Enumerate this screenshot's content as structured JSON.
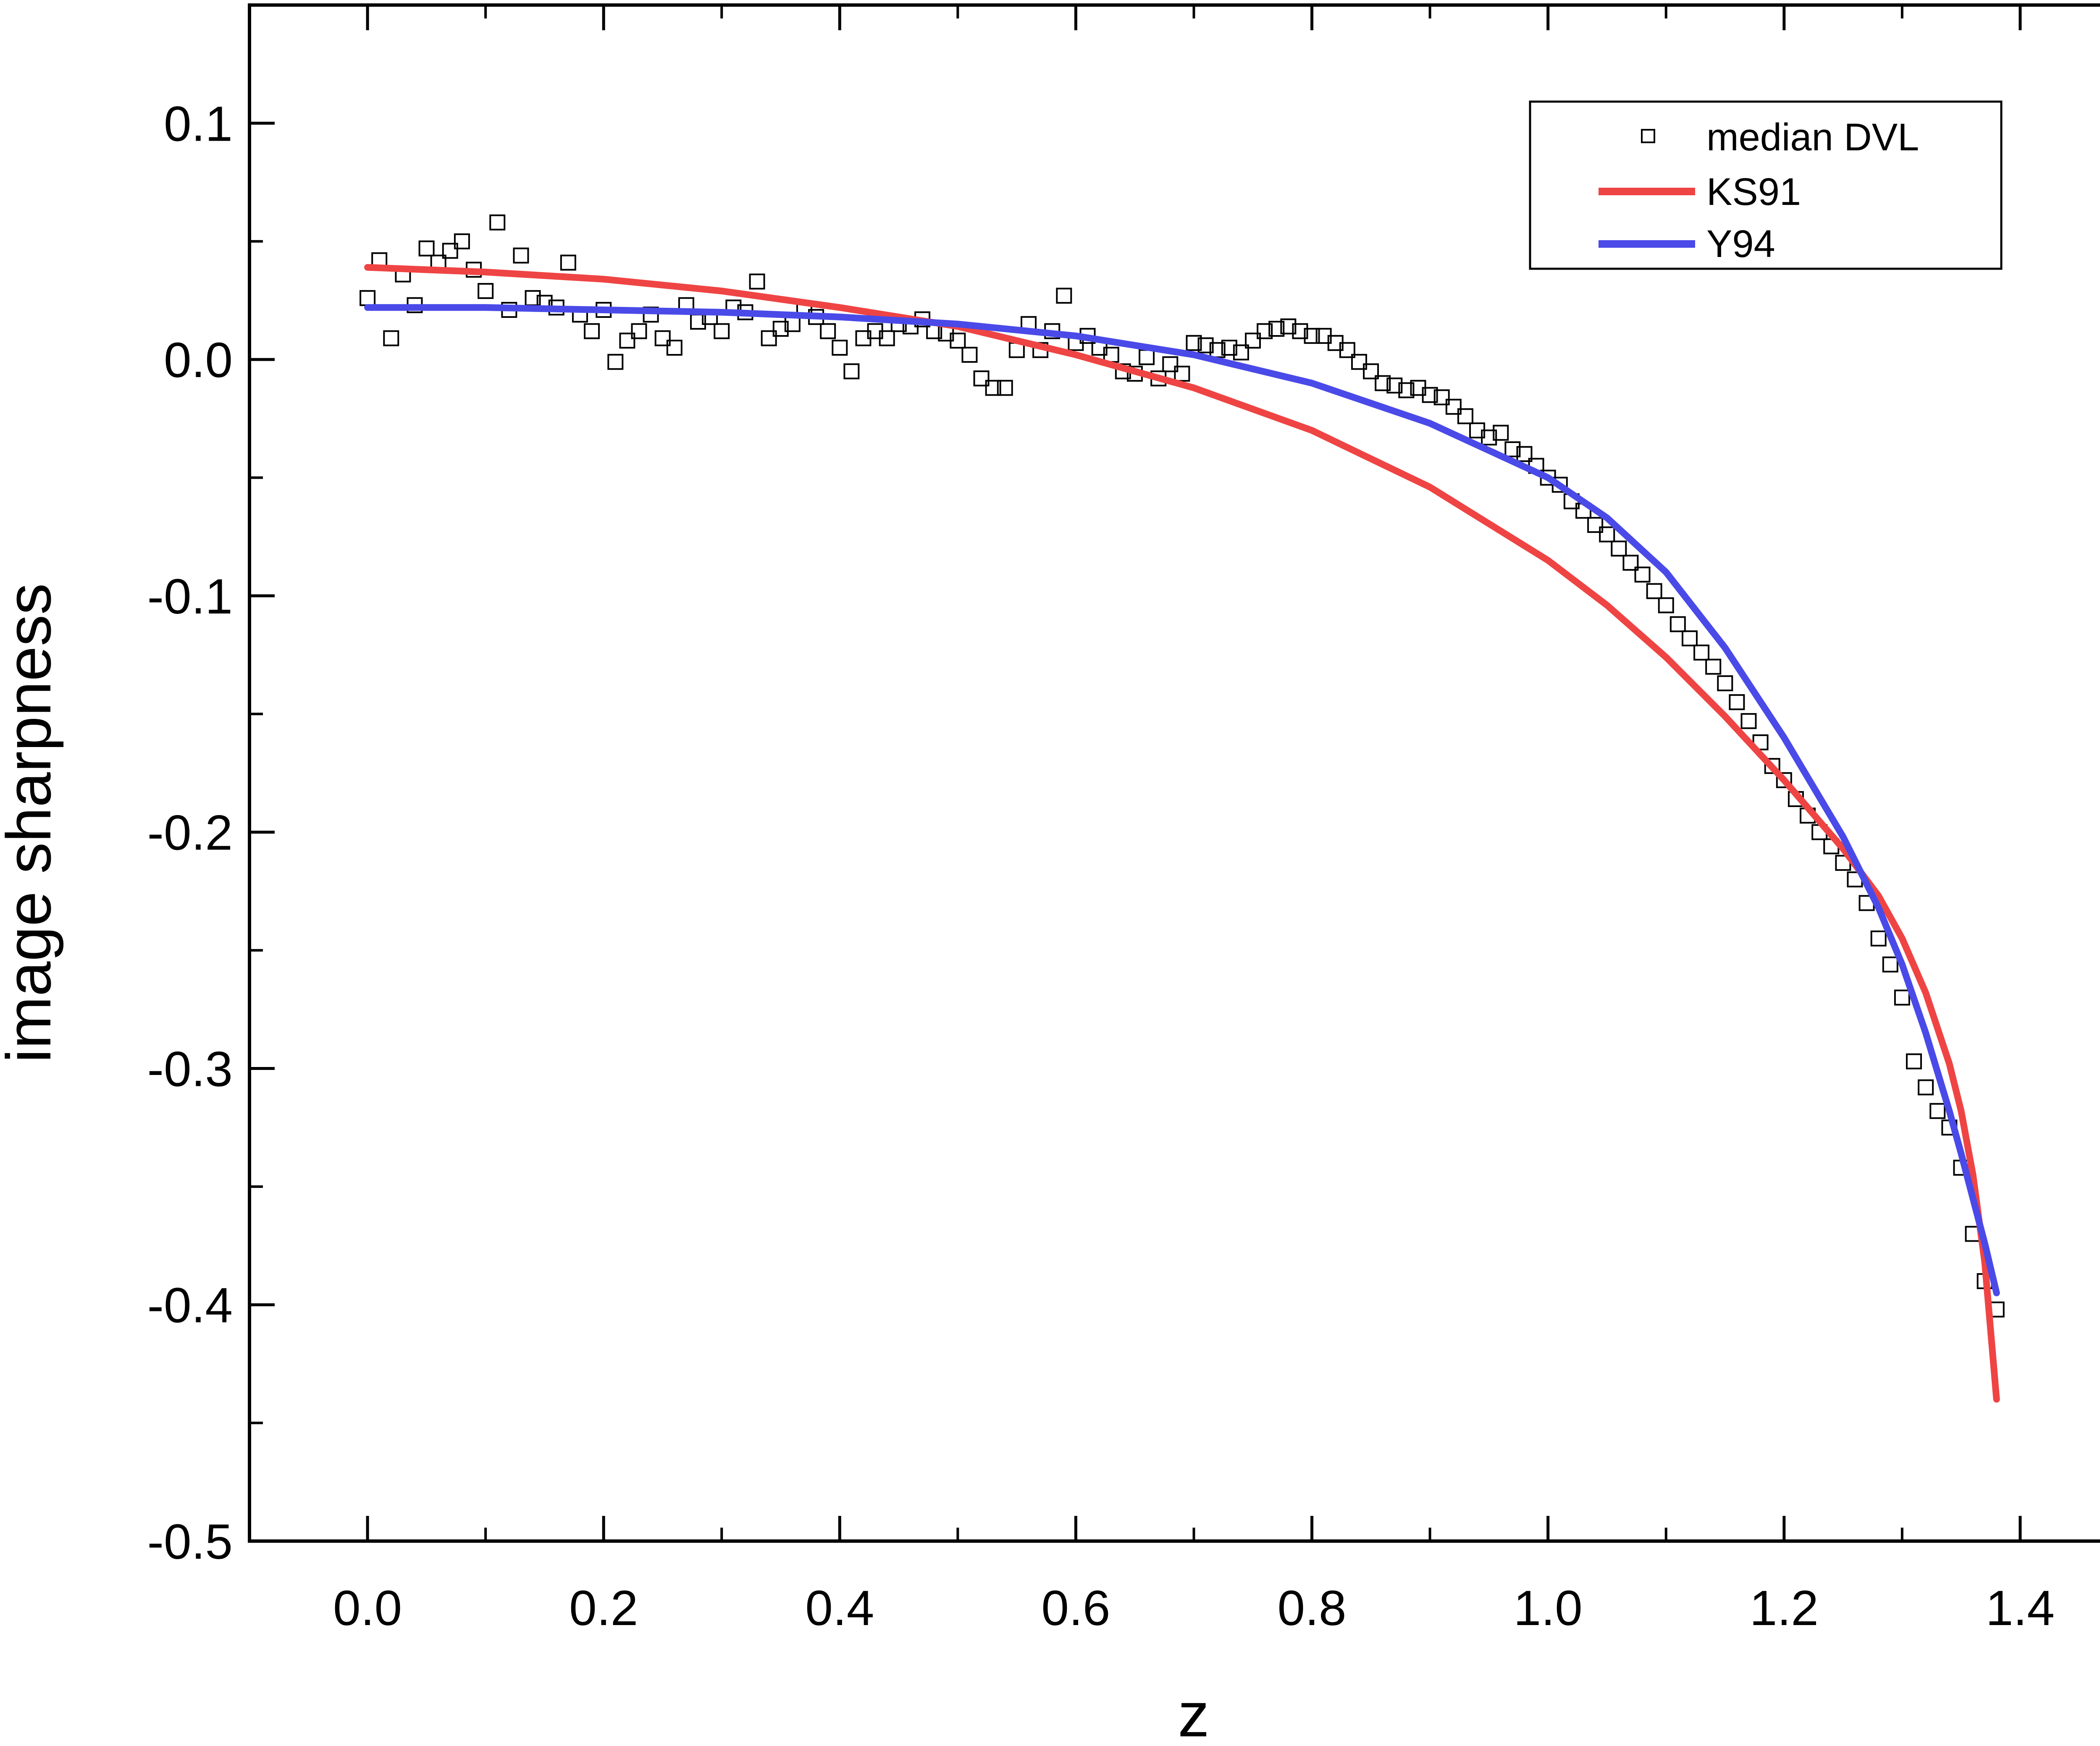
{
  "chart_data": {
    "type": "scatter",
    "title": "",
    "xlabel": "z",
    "ylabel": "image sharpness",
    "xlim": [
      -0.1,
      1.5
    ],
    "ylim": [
      -0.5,
      0.15
    ],
    "x_ticks": [
      0.0,
      0.2,
      0.4,
      0.6,
      0.8,
      1.0,
      1.2,
      1.4
    ],
    "x_tick_labels": [
      "0.0",
      "0.2",
      "0.4",
      "0.6",
      "0.8",
      "1.0",
      "1.2",
      "1.4"
    ],
    "y_ticks": [
      0.1,
      0.0,
      -0.1,
      -0.2,
      -0.3,
      -0.4,
      -0.5
    ],
    "y_tick_labels": [
      "0.1",
      "0.0",
      "-0.1",
      "-0.2",
      "-0.3",
      "-0.4",
      "-0.5"
    ],
    "grid": false,
    "legend_position": "top-right",
    "series": [
      {
        "name": "median DVL",
        "kind": "markers",
        "marker": "open-square",
        "color": "#000000",
        "x": [
          0.0,
          0.01,
          0.02,
          0.03,
          0.04,
          0.05,
          0.06,
          0.07,
          0.08,
          0.09,
          0.1,
          0.11,
          0.12,
          0.13,
          0.14,
          0.15,
          0.16,
          0.17,
          0.18,
          0.19,
          0.2,
          0.21,
          0.22,
          0.23,
          0.24,
          0.25,
          0.26,
          0.27,
          0.28,
          0.29,
          0.3,
          0.31,
          0.32,
          0.33,
          0.34,
          0.35,
          0.36,
          0.37,
          0.38,
          0.39,
          0.4,
          0.41,
          0.42,
          0.43,
          0.44,
          0.45,
          0.46,
          0.47,
          0.48,
          0.49,
          0.5,
          0.51,
          0.52,
          0.53,
          0.54,
          0.55,
          0.56,
          0.57,
          0.58,
          0.59,
          0.6,
          0.61,
          0.62,
          0.63,
          0.64,
          0.65,
          0.66,
          0.67,
          0.68,
          0.69,
          0.7,
          0.71,
          0.72,
          0.73,
          0.74,
          0.75,
          0.76,
          0.77,
          0.78,
          0.79,
          0.8,
          0.81,
          0.82,
          0.83,
          0.84,
          0.85,
          0.86,
          0.87,
          0.88,
          0.89,
          0.9,
          0.91,
          0.92,
          0.93,
          0.94,
          0.95,
          0.96,
          0.97,
          0.98,
          0.99,
          1.0,
          1.01,
          1.02,
          1.03,
          1.04,
          1.05,
          1.06,
          1.07,
          1.08,
          1.09,
          1.1,
          1.11,
          1.12,
          1.13,
          1.14,
          1.15,
          1.16,
          1.17,
          1.18,
          1.19,
          1.2,
          1.21,
          1.22,
          1.23,
          1.24,
          1.25,
          1.26,
          1.27,
          1.28,
          1.29,
          1.3,
          1.31,
          1.32,
          1.33,
          1.34,
          1.35,
          1.36,
          1.37,
          1.38
        ],
        "y": [
          0.026,
          0.042,
          0.009,
          0.036,
          0.023,
          0.047,
          0.041,
          0.046,
          0.05,
          0.038,
          0.029,
          0.058,
          0.021,
          0.044,
          0.026,
          0.024,
          0.022,
          0.041,
          0.019,
          0.012,
          0.021,
          -0.001,
          0.008,
          0.012,
          0.019,
          0.009,
          0.005,
          0.023,
          0.016,
          0.018,
          0.012,
          0.022,
          0.02,
          0.033,
          0.009,
          0.013,
          0.015,
          0.021,
          0.018,
          0.012,
          0.005,
          -0.005,
          0.009,
          0.012,
          0.009,
          0.015,
          0.014,
          0.017,
          0.012,
          0.011,
          0.008,
          0.002,
          -0.008,
          -0.012,
          -0.012,
          0.004,
          0.015,
          0.004,
          0.012,
          0.027,
          0.007,
          0.01,
          0.005,
          0.002,
          -0.005,
          -0.006,
          0.001,
          -0.008,
          -0.002,
          -0.006,
          0.007,
          0.006,
          0.004,
          0.005,
          0.003,
          0.008,
          0.012,
          0.013,
          0.014,
          0.012,
          0.01,
          0.01,
          0.007,
          0.004,
          -0.001,
          -0.005,
          -0.01,
          -0.011,
          -0.013,
          -0.012,
          -0.015,
          -0.016,
          -0.02,
          -0.024,
          -0.03,
          -0.033,
          -0.031,
          -0.038,
          -0.04,
          -0.045,
          -0.05,
          -0.053,
          -0.06,
          -0.064,
          -0.07,
          -0.074,
          -0.08,
          -0.086,
          -0.091,
          -0.098,
          -0.104,
          -0.112,
          -0.118,
          -0.124,
          -0.13,
          -0.137,
          -0.145,
          -0.153,
          -0.162,
          -0.172,
          -0.178,
          -0.186,
          -0.193,
          -0.2,
          -0.206,
          -0.213,
          -0.22,
          -0.23,
          -0.245,
          -0.256,
          -0.27,
          -0.297,
          -0.308,
          -0.318,
          -0.325,
          -0.342,
          -0.37,
          -0.39,
          -0.402
        ]
      },
      {
        "name": "KS91",
        "kind": "line",
        "color": "#ef4444",
        "x": [
          0.0,
          0.1,
          0.2,
          0.3,
          0.4,
          0.5,
          0.6,
          0.7,
          0.8,
          0.9,
          1.0,
          1.05,
          1.1,
          1.15,
          1.2,
          1.25,
          1.28,
          1.3,
          1.32,
          1.34,
          1.35,
          1.36,
          1.37,
          1.38
        ],
        "y": [
          0.039,
          0.037,
          0.034,
          0.029,
          0.022,
          0.014,
          0.002,
          -0.012,
          -0.03,
          -0.054,
          -0.085,
          -0.104,
          -0.126,
          -0.151,
          -0.178,
          -0.207,
          -0.227,
          -0.245,
          -0.268,
          -0.298,
          -0.318,
          -0.345,
          -0.382,
          -0.44
        ]
      },
      {
        "name": "Y94",
        "kind": "line",
        "color": "#4a4ae8",
        "x": [
          0.0,
          0.1,
          0.2,
          0.3,
          0.4,
          0.5,
          0.6,
          0.7,
          0.8,
          0.9,
          1.0,
          1.05,
          1.1,
          1.15,
          1.2,
          1.25,
          1.28,
          1.3,
          1.32,
          1.34,
          1.35,
          1.36,
          1.37,
          1.38
        ],
        "y": [
          0.022,
          0.022,
          0.021,
          0.02,
          0.018,
          0.015,
          0.01,
          0.002,
          -0.01,
          -0.027,
          -0.05,
          -0.067,
          -0.09,
          -0.122,
          -0.16,
          -0.202,
          -0.232,
          -0.256,
          -0.285,
          -0.318,
          -0.336,
          -0.355,
          -0.374,
          -0.395
        ]
      }
    ]
  }
}
